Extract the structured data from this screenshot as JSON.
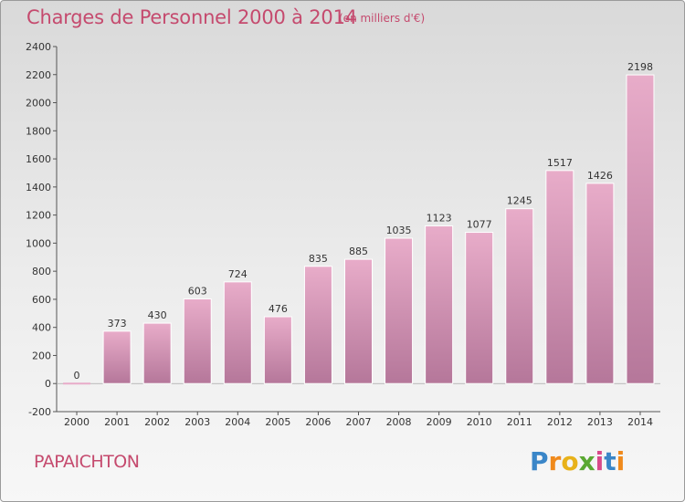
{
  "header": {
    "title": "Charges de Personnel 2000 à 2014",
    "subtitle": "(en milliers d'€)"
  },
  "footer": {
    "commune": "PAPAICHTON",
    "logo_text": "Proxiti"
  },
  "colors": {
    "title": "#c54a6e",
    "bar_top": "#e8acc9",
    "bar_bottom": "#b5779a"
  },
  "chart_data": {
    "type": "bar",
    "title": "Charges de Personnel 2000 à 2014",
    "subtitle": "(en milliers d'€)",
    "categories": [
      "2000",
      "2001",
      "2002",
      "2003",
      "2004",
      "2005",
      "2006",
      "2007",
      "2008",
      "2009",
      "2010",
      "2011",
      "2012",
      "2013",
      "2014"
    ],
    "values": [
      0,
      373,
      430,
      603,
      724,
      476,
      835,
      885,
      1035,
      1123,
      1077,
      1245,
      1517,
      1426,
      2198
    ],
    "ylim": [
      -200,
      2400
    ],
    "yticks": [
      -200,
      0,
      200,
      400,
      600,
      800,
      1000,
      1200,
      1400,
      1600,
      1800,
      2000,
      2200,
      2400
    ],
    "grid": false,
    "legend": "none"
  }
}
